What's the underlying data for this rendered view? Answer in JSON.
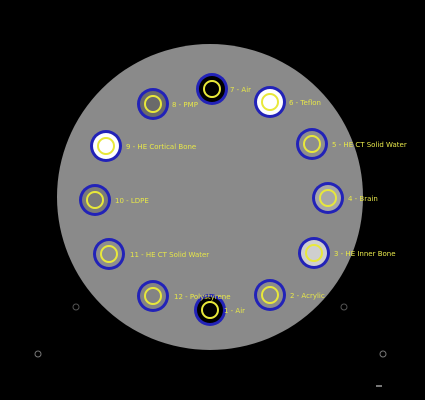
{
  "colors": {
    "background": "#000000",
    "phantom": "#8a8a8a",
    "ring": "#2222b8",
    "marker": "#e8e83a",
    "label": "#e6e64a"
  },
  "inserts": [
    {
      "label": "1 - Air",
      "fill": "#000000"
    },
    {
      "label": "2 - Acrylic",
      "fill": "#8c8c8c"
    },
    {
      "label": "3 - HE Inner Bone",
      "fill": "#cfcfcf"
    },
    {
      "label": "4 - Brain",
      "fill": "#a8a8a8"
    },
    {
      "label": "5 - HE CT Solid Water",
      "fill": "#8e8e8e"
    },
    {
      "label": "6 - Teflon",
      "fill": "#ffffff"
    },
    {
      "label": "7 - Air",
      "fill": "#000000"
    },
    {
      "label": "8 - PMP",
      "fill": "#6a6a6a"
    },
    {
      "label": "9 - HE Cortical Bone",
      "fill": "#ffffff"
    },
    {
      "label": "10 - LDPE",
      "fill": "#7a7a7a"
    },
    {
      "label": "11 - HE CT Solid Water",
      "fill": "#8e8e8e"
    },
    {
      "label": "12 - Polystyrene",
      "fill": "#848484"
    }
  ]
}
